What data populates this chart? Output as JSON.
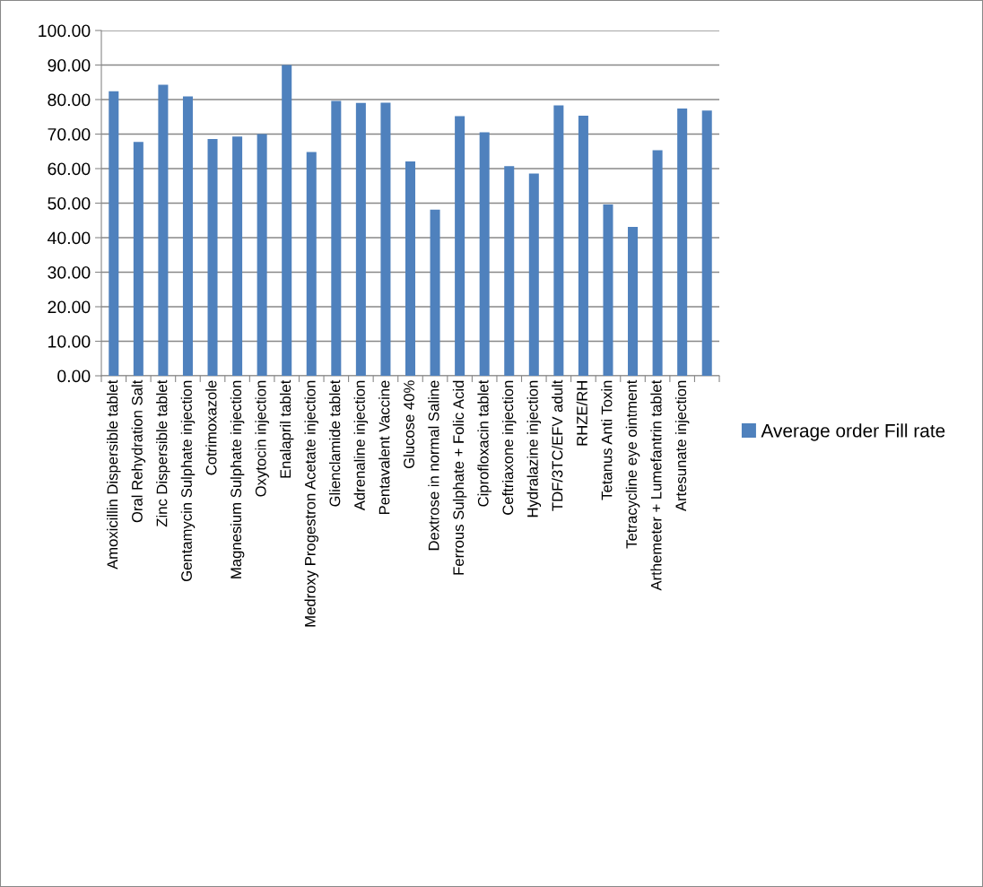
{
  "chart_data": {
    "type": "bar",
    "categories": [
      "Amoxicillin Dispersible tablet",
      "Oral Rehydration Salt",
      "Zinc Dispersible tablet",
      "Gentamycin Sulphate injection",
      "Cotrimoxazole",
      "Magnesium Sulphate injection",
      "Oxytocin injection",
      "Enalapril tablet",
      "Medroxy Progestron Acetate injection",
      "Glienclamide tablet",
      "Adrenaline injection",
      "Pentavalent Vaccine",
      "Glucose 40%",
      "Dextrose in normal Saline",
      "Ferrous Sulphate + Folic Acid",
      "Ciprofloxacin tablet",
      "Ceftriaxone injection",
      "Hydralazine injection",
      "TDF/3TC/EFV adult",
      "RHZE/RH",
      "Tetanus Anti Toxin",
      "Tetracycline eye ointment",
      "Arthemeter + Lumefantrin tablet",
      "Artesunate injection",
      null
    ],
    "series": [
      {
        "name": "Average order Fill rate",
        "color": "#4f81bd",
        "values": [
          82.4,
          67.7,
          84.3,
          80.9,
          68.6,
          69.3,
          70.0,
          90.0,
          64.8,
          79.6,
          79.0,
          79.1,
          62.1,
          48.1,
          75.2,
          70.5,
          60.7,
          58.6,
          78.3,
          75.3,
          49.6,
          43.1,
          65.3,
          77.4,
          76.8
        ]
      }
    ],
    "ylim": [
      0,
      100
    ],
    "yticks": [
      {
        "value": 0,
        "label": "0.00"
      },
      {
        "value": 10,
        "label": "10.00"
      },
      {
        "value": 20,
        "label": "20.00"
      },
      {
        "value": 30,
        "label": "30.00"
      },
      {
        "value": 40,
        "label": "40.00"
      },
      {
        "value": 50,
        "label": "50.00"
      },
      {
        "value": 60,
        "label": "60.00"
      },
      {
        "value": 70,
        "label": "70.00"
      },
      {
        "value": 80,
        "label": "80.00"
      },
      {
        "value": 90,
        "label": "90.00"
      },
      {
        "value": 100,
        "label": "100.00"
      }
    ],
    "grid": "y",
    "legend": "right"
  }
}
